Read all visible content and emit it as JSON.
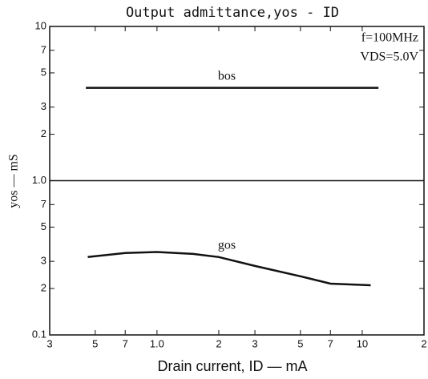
{
  "chart_data": {
    "type": "line",
    "title": "Output admittance,yos - ID",
    "xlabel": "Drain current, ID — mA",
    "ylabel": "yos — mS",
    "annotations": [
      "f=100MHz",
      "VDS=5.0V"
    ],
    "xscale": "log",
    "yscale": "log",
    "xlim": [
      0.3,
      20
    ],
    "ylim": [
      0.1,
      10
    ],
    "xticks": [
      {
        "value": 0.3,
        "label": "3"
      },
      {
        "value": 0.5,
        "label": "5"
      },
      {
        "value": 0.7,
        "label": "7"
      },
      {
        "value": 1,
        "label": "1.0"
      },
      2,
      3,
      5,
      7,
      10,
      {
        "value": 20,
        "label": "2"
      }
    ],
    "yticks": [
      0.1,
      {
        "value": 0.2,
        "label": "2"
      },
      {
        "value": 0.3,
        "label": "3"
      },
      {
        "value": 0.5,
        "label": "5"
      },
      {
        "value": 0.7,
        "label": "7"
      },
      {
        "value": 1,
        "label": "1.0"
      },
      2,
      3,
      5,
      7,
      10
    ],
    "series": [
      {
        "name": "bos",
        "color": "#111111",
        "x": [
          0.45,
          1,
          2,
          5,
          12
        ],
        "values": [
          4.0,
          4.0,
          4.0,
          4.0,
          4.0
        ]
      },
      {
        "name": "gos",
        "color": "#111111",
        "x": [
          0.46,
          0.7,
          1,
          1.5,
          2,
          3,
          5,
          7,
          11
        ],
        "values": [
          0.32,
          0.34,
          0.345,
          0.335,
          0.32,
          0.28,
          0.24,
          0.215,
          0.21
        ]
      }
    ]
  }
}
